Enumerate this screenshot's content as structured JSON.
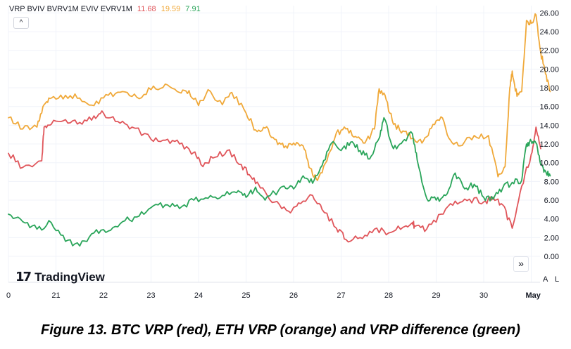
{
  "legend": {
    "labels": "VRP BVIV BVRV1M EVIV EVRV1M",
    "red_value": "11.68",
    "orange_value": "19.59",
    "green_value": "7.91"
  },
  "controls": {
    "collapse_icon": "^",
    "goto_icon": "»",
    "auto_scale": "A",
    "log_scale": "L"
  },
  "branding": {
    "logo_mark": "17",
    "logo_text": "TradingView"
  },
  "caption": "Figure 13. BTC VRP (red), ETH VRP (orange) and VRP difference (green)",
  "colors": {
    "red": "#e0565b",
    "orange": "#f0a93a",
    "green": "#2aa55a",
    "grid": "#f0f3fa",
    "axis_text": "#131722"
  },
  "chart_data": {
    "type": "line",
    "title": "",
    "xlabel": "",
    "ylabel": "",
    "ylim": [
      -1.5,
      26.5
    ],
    "y_ticks": [
      "0.00",
      "2.00",
      "4.00",
      "6.00",
      "8.00",
      "10.00",
      "12.00",
      "14.00",
      "16.00",
      "18.00",
      "20.00",
      "22.00",
      "24.00",
      "26.00"
    ],
    "x_range": [
      0,
      11.6
    ],
    "x_ticks": [
      {
        "x": 0,
        "label": "0"
      },
      {
        "x": 1,
        "label": "21"
      },
      {
        "x": 2,
        "label": "22"
      },
      {
        "x": 3,
        "label": "23"
      },
      {
        "x": 4,
        "label": "24"
      },
      {
        "x": 5,
        "label": "25"
      },
      {
        "x": 6,
        "label": "26"
      },
      {
        "x": 7,
        "label": "27"
      },
      {
        "x": 8,
        "label": "28"
      },
      {
        "x": 9,
        "label": "29"
      },
      {
        "x": 10,
        "label": "30"
      },
      {
        "x": 11,
        "label": "May"
      }
    ],
    "series": [
      {
        "name": "BTC VRP",
        "color": "red",
        "x": [
          0,
          0.3,
          0.7,
          0.75,
          0.9,
          1.2,
          1.5,
          1.8,
          2.0,
          2.3,
          2.6,
          3.0,
          3.3,
          3.6,
          3.9,
          4.05,
          4.3,
          4.6,
          4.9,
          5.1,
          5.3,
          5.6,
          5.9,
          6.1,
          6.4,
          6.6,
          6.9,
          7.1,
          7.4,
          7.7,
          8.0,
          8.3,
          8.5,
          8.55,
          8.8,
          9.1,
          9.4,
          9.7,
          10.0,
          10.2,
          10.4,
          10.6,
          10.8,
          11.0,
          11.1,
          11.2
        ],
        "y": [
          11.0,
          9.5,
          10.2,
          13.8,
          14.1,
          14.6,
          14.3,
          15.0,
          15.3,
          14.4,
          13.8,
          12.5,
          12.4,
          12.0,
          11.1,
          9.8,
          10.5,
          11.3,
          9.8,
          8.5,
          7.3,
          5.8,
          4.8,
          5.7,
          6.5,
          5.0,
          3.0,
          1.8,
          2.0,
          2.9,
          2.5,
          3.1,
          3.6,
          3.2,
          2.9,
          4.5,
          5.9,
          6.1,
          5.8,
          6.3,
          5.5,
          3.0,
          7.5,
          10.9,
          13.8,
          11.5
        ]
      },
      {
        "name": "ETH VRP",
        "color": "orange",
        "x": [
          0,
          0.3,
          0.6,
          0.75,
          0.9,
          1.2,
          1.5,
          1.8,
          2.1,
          2.4,
          2.7,
          3.0,
          3.3,
          3.6,
          3.8,
          4.0,
          4.2,
          4.5,
          4.7,
          5.0,
          5.2,
          5.4,
          5.6,
          5.8,
          6.0,
          6.2,
          6.35,
          6.5,
          6.7,
          6.9,
          7.1,
          7.3,
          7.5,
          7.7,
          7.8,
          7.95,
          8.1,
          8.3,
          8.5,
          8.7,
          8.9,
          9.1,
          9.3,
          9.5,
          9.8,
          10.1,
          10.3,
          10.45,
          10.55,
          10.6,
          10.7,
          10.8,
          10.9,
          11.0,
          11.1,
          11.2,
          11.3,
          11.4
        ],
        "y": [
          14.8,
          13.6,
          13.8,
          16.2,
          16.9,
          17.2,
          16.9,
          16.1,
          17.2,
          17.6,
          17.0,
          17.8,
          18.4,
          17.5,
          17.7,
          16.1,
          17.8,
          16.2,
          17.5,
          15.3,
          13.5,
          13.7,
          12.5,
          11.6,
          12.1,
          11.8,
          9.4,
          8.1,
          10.2,
          13.2,
          13.6,
          12.8,
          12.1,
          13.6,
          17.9,
          16.7,
          14.1,
          13.4,
          12.6,
          12.1,
          13.7,
          14.9,
          12.4,
          11.8,
          12.9,
          12.9,
          8.5,
          9.6,
          18.0,
          19.8,
          17.1,
          17.6,
          25.2,
          24.9,
          25.8,
          21.8,
          19.5,
          17.6
        ]
      },
      {
        "name": "VRP difference",
        "color": "green",
        "x": [
          0,
          0.3,
          0.6,
          0.9,
          1.2,
          1.5,
          1.8,
          2.1,
          2.4,
          2.7,
          3.0,
          3.3,
          3.6,
          3.9,
          4.2,
          4.5,
          4.8,
          5.0,
          5.2,
          5.4,
          5.6,
          5.8,
          6.0,
          6.2,
          6.4,
          6.6,
          6.8,
          7.0,
          7.2,
          7.4,
          7.6,
          7.8,
          7.9,
          8.1,
          8.3,
          8.5,
          8.6,
          8.8,
          9.0,
          9.2,
          9.4,
          9.6,
          9.8,
          10.0,
          10.2,
          10.4,
          10.6,
          10.8,
          10.9,
          11.0,
          11.1,
          11.2,
          11.3,
          11.4
        ],
        "y": [
          4.5,
          3.7,
          2.9,
          3.6,
          1.6,
          1.1,
          2.5,
          2.7,
          3.7,
          4.2,
          5.2,
          5.5,
          5.1,
          6.0,
          6.2,
          6.5,
          6.8,
          6.3,
          7.4,
          6.0,
          6.8,
          7.5,
          7.2,
          8.6,
          7.8,
          9.7,
          12.1,
          11.3,
          12.2,
          11.3,
          10.4,
          12.6,
          14.8,
          11.5,
          12.3,
          13.1,
          10.3,
          6.2,
          6.0,
          6.5,
          8.9,
          7.2,
          7.7,
          6.3,
          6.1,
          7.3,
          7.9,
          8.1,
          12.0,
          12.3,
          12.1,
          9.8,
          9.1,
          8.6
        ]
      }
    ]
  }
}
